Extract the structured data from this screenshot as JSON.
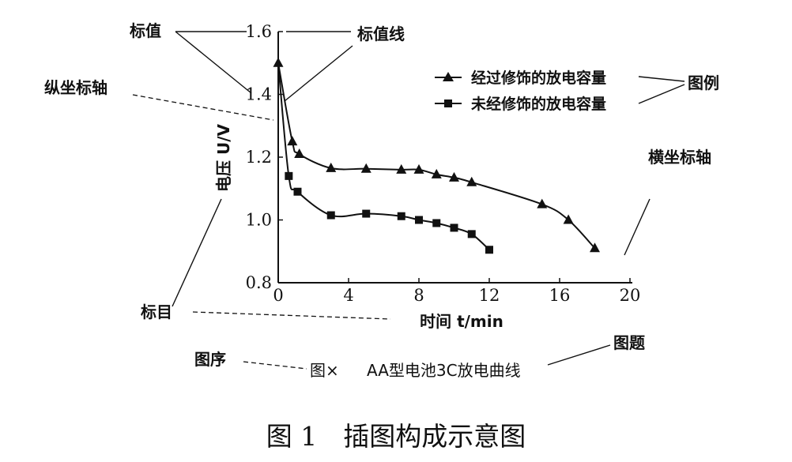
{
  "chart_data": {
    "type": "line",
    "title": "AA型电池3C放电曲线",
    "figure_number": "图×",
    "xlabel": "时间 t/min",
    "ylabel": "电压 U/V",
    "xlim": [
      0,
      20
    ],
    "ylim": [
      0.8,
      1.6
    ],
    "x_ticks": [
      "0",
      "4",
      "8",
      "12",
      "16",
      "20"
    ],
    "y_ticks": [
      "0.8",
      "1.0",
      "1.2",
      "1.4",
      "1.6"
    ],
    "grid": false,
    "legend_position": "top-right",
    "series": [
      {
        "name": "经过修饰的放电容量",
        "marker": "triangle",
        "x": [
          0,
          0.8,
          1.2,
          3,
          5,
          7,
          8,
          9,
          10,
          11,
          15,
          16.5,
          18
        ],
        "y": [
          1.5,
          1.25,
          1.21,
          1.165,
          1.163,
          1.16,
          1.16,
          1.145,
          1.135,
          1.12,
          1.05,
          1.0,
          0.91
        ]
      },
      {
        "name": "未经修饰的放电容量",
        "marker": "square",
        "x": [
          0.6,
          1.1,
          3,
          5,
          7,
          8,
          9,
          10,
          11,
          12
        ],
        "y": [
          1.14,
          1.09,
          1.015,
          1.02,
          1.012,
          1.0,
          0.99,
          0.975,
          0.955,
          0.905
        ]
      }
    ],
    "annotations": [
      "标值",
      "标值线",
      "纵坐标轴",
      "图例",
      "横坐标轴",
      "标目",
      "图序",
      "图题"
    ]
  },
  "caption": "图 1　插图构成示意图"
}
